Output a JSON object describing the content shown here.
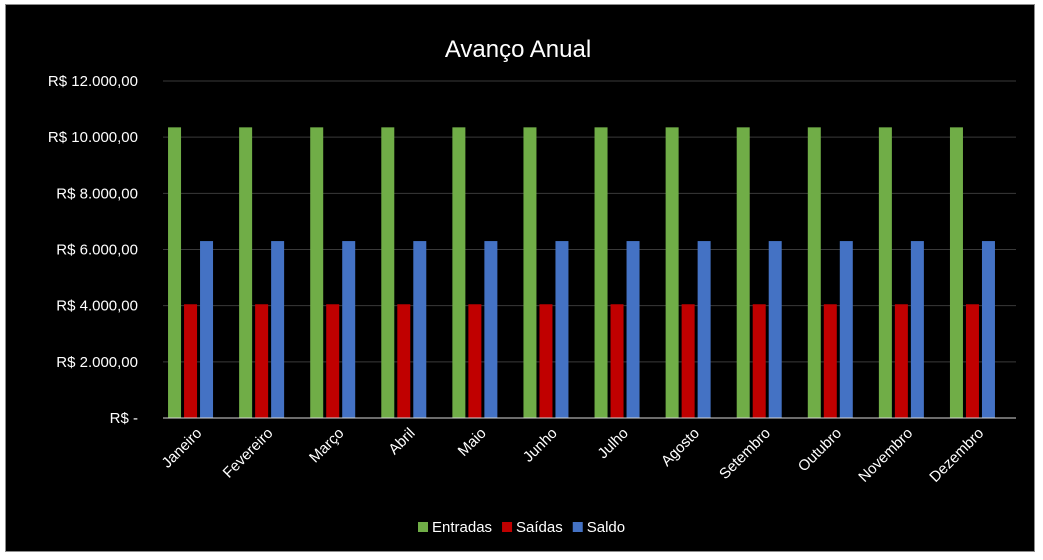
{
  "chart_data": {
    "type": "bar",
    "title": "Avanço Anual",
    "xlabel": "",
    "ylabel": "",
    "ylim": [
      0,
      12000
    ],
    "yticks": [
      0,
      2000,
      4000,
      6000,
      8000,
      10000,
      12000
    ],
    "ytick_labels": [
      "R$ -",
      "R$ 2.000,00",
      "R$ 4.000,00",
      "R$ 6.000,00",
      "R$ 8.000,00",
      "R$ 10.000,00",
      "R$ 12.000,00"
    ],
    "grid": true,
    "legend_position": "bottom",
    "categories": [
      "Janeiro",
      "Fevereiro",
      "Março",
      "Abril",
      "Maio",
      "Junho",
      "Julho",
      "Agosto",
      "Setembro",
      "Outubro",
      "Novembro",
      "Dezembro"
    ],
    "series": [
      {
        "name": "Entradas",
        "color": "#70ad47",
        "values": [
          10350,
          10350,
          10350,
          10350,
          10350,
          10350,
          10350,
          10350,
          10350,
          10350,
          10350,
          10350
        ]
      },
      {
        "name": "Saídas",
        "color": "#c00000",
        "values": [
          4050,
          4050,
          4050,
          4050,
          4050,
          4050,
          4050,
          4050,
          4050,
          4050,
          4050,
          4050
        ]
      },
      {
        "name": "Saldo",
        "color": "#4472c4",
        "values": [
          6300,
          6300,
          6300,
          6300,
          6300,
          6300,
          6300,
          6300,
          6300,
          6300,
          6300,
          6300
        ]
      }
    ]
  },
  "colors": {
    "background": "#000000",
    "text": "#ffffff",
    "gridline": "#3a3a3a",
    "axis": "#d9d9d9"
  }
}
